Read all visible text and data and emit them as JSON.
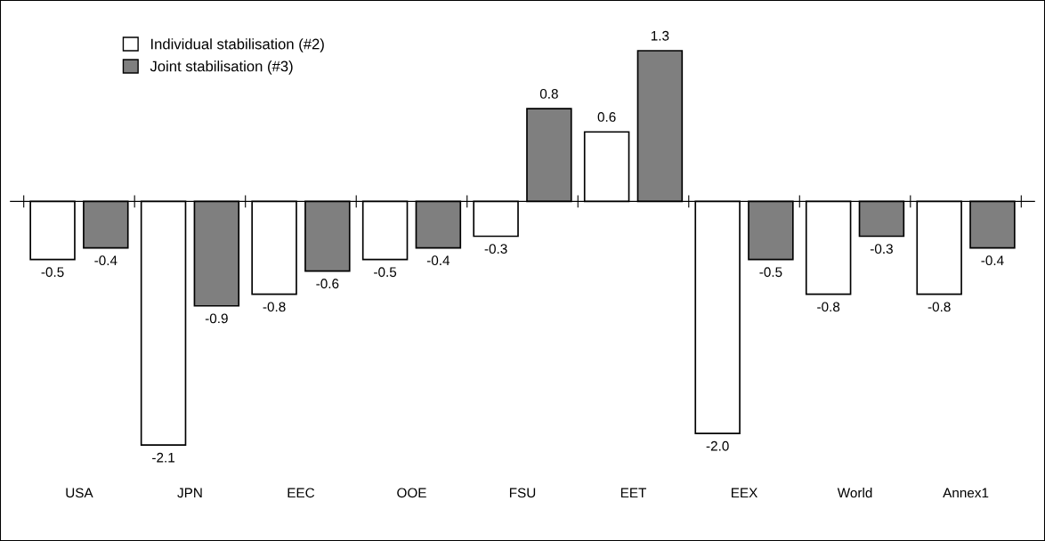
{
  "chart_data": {
    "type": "bar",
    "categories": [
      "USA",
      "JPN",
      "EEC",
      "OOE",
      "FSU",
      "EET",
      "EEX",
      "World",
      "Annex1"
    ],
    "series": [
      {
        "name": "Individual stabilisation (#2)",
        "color": "#ffffff",
        "values": [
          -0.5,
          -2.1,
          -0.8,
          -0.5,
          -0.3,
          0.6,
          -2.0,
          -0.8,
          -0.8
        ],
        "value_labels": [
          "-0.5",
          "-2.1",
          "-0.8",
          "-0.5",
          "-0.3",
          "0.6",
          "-2.0",
          "-0.8",
          "-0.8"
        ]
      },
      {
        "name": "Joint stabilisation (#3)",
        "color": "#7f7f7f",
        "values": [
          -0.4,
          -0.9,
          -0.6,
          -0.4,
          0.8,
          1.3,
          -0.5,
          -0.3,
          -0.4
        ],
        "value_labels": [
          "-0.4",
          "-0.9",
          "-0.6",
          "-0.4",
          "0.8",
          "1.3",
          "-0.5",
          "-0.3",
          "-0.4"
        ]
      }
    ],
    "grid": false,
    "legend": "top left"
  }
}
